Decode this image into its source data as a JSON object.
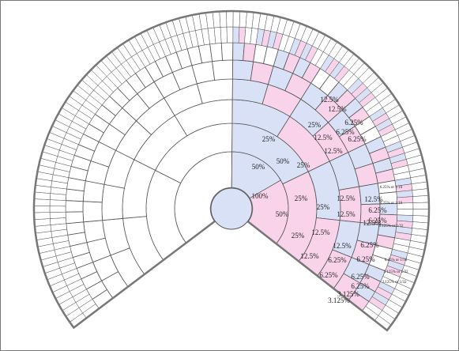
{
  "labels": [
    "100%",
    "50%",
    "50%",
    "50%",
    "25%",
    "25%",
    "25%",
    "25%",
    "25%",
    "25%",
    "12.5%",
    "12.5%",
    "12.5%",
    "12.5%",
    "12.5%",
    "12.5%",
    "12.5%",
    "12.5%",
    "12.5%",
    "12.5%",
    "12.5%",
    "6.25%",
    "6.25%",
    "6.25%",
    "6.25%",
    "6.25%",
    "6.25%",
    "6.25%",
    "6.25%",
    "6.25%",
    "6.25%",
    "6.25%",
    "3.125%",
    "3.125%",
    "6.25% or 1/16",
    "6.25% or 1/16",
    "3.125% or 1/32",
    "3.125% or 1/32",
    "6.25% or 1/16",
    "3.125% or 1/32"
  ]
}
